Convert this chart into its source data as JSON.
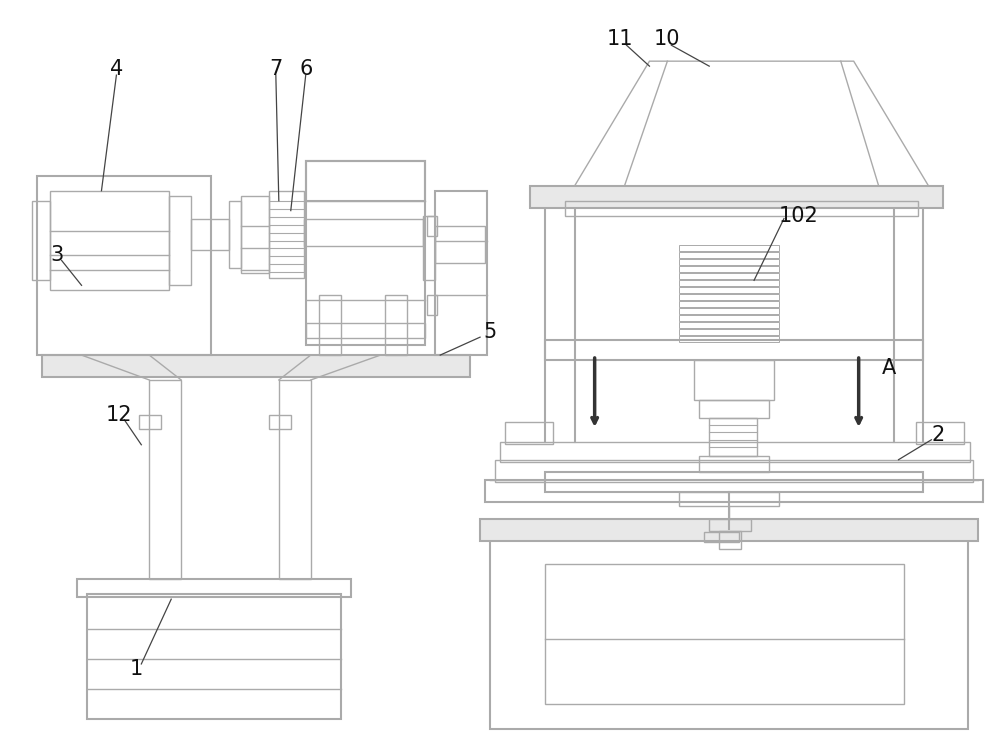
{
  "bg_color": "#ffffff",
  "lc": "#aaaaaa",
  "lc2": "#999999",
  "lw": 1.0,
  "lw2": 1.5,
  "fs": 15
}
